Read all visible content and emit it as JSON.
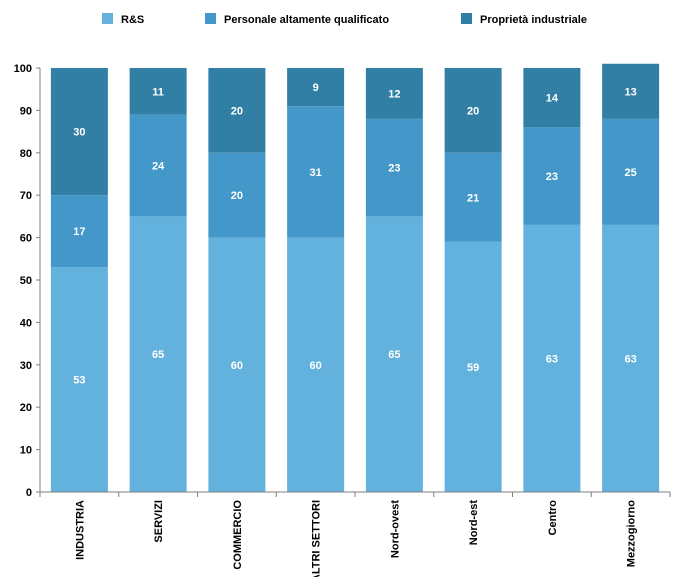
{
  "chart_data": {
    "type": "bar",
    "stacked": true,
    "categories": [
      "INDUSTRIA",
      "SERVIZI",
      "COMMERCIO",
      "ALTRI SETTORI",
      "Nord-ovest",
      "Nord-est",
      "Centro",
      "Mezzogiorno"
    ],
    "series": [
      {
        "name": "R&S",
        "color": "#63b1dd",
        "values": [
          53,
          65,
          60,
          60,
          65,
          59,
          63,
          63
        ]
      },
      {
        "name": "Personale altamente qualificato",
        "color": "#4398c9",
        "values": [
          17,
          24,
          20,
          31,
          23,
          21,
          23,
          25
        ]
      },
      {
        "name": "Proprietà industriale",
        "color": "#327fa5",
        "values": [
          30,
          11,
          20,
          9,
          12,
          20,
          14,
          13
        ]
      }
    ],
    "yticks": [
      0,
      10,
      20,
      30,
      40,
      50,
      60,
      70,
      80,
      90,
      100
    ],
    "ylim": [
      0,
      100
    ],
    "title": "",
    "xlabel": "",
    "ylabel": "",
    "grid": false,
    "legend": "top-center"
  }
}
